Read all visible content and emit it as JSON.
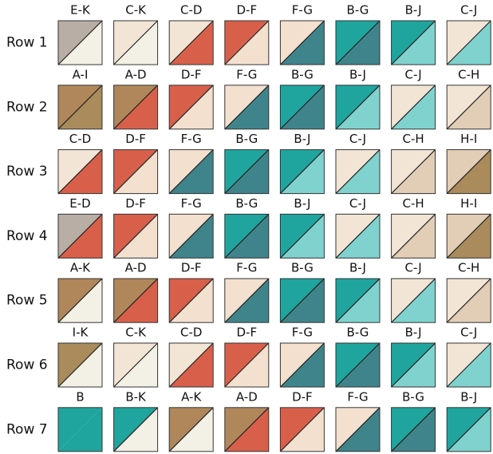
{
  "rows": [
    {
      "label": "Row 1",
      "cells": [
        "E-K",
        "C-K",
        "C-D",
        "D-F",
        "F-G",
        "B-G",
        "B-J",
        "C-J"
      ]
    },
    {
      "label": "Row 2",
      "cells": [
        "A-I",
        "A-D",
        "D-F",
        "F-G",
        "B-G",
        "B-J",
        "C-J",
        "C-H"
      ]
    },
    {
      "label": "Row 3",
      "cells": [
        "C-D",
        "D-F",
        "F-G",
        "B-G",
        "B-J",
        "C-J",
        "C-H",
        "H-I"
      ]
    },
    {
      "label": "Row 4",
      "cells": [
        "E-D",
        "D-F",
        "F-G",
        "B-G",
        "B-J",
        "C-J",
        "C-H",
        "H-I"
      ]
    },
    {
      "label": "Row 5",
      "cells": [
        "A-K",
        "A-D",
        "D-F",
        "F-G",
        "B-G",
        "B-J",
        "C-J",
        "C-H"
      ]
    },
    {
      "label": "Row 6",
      "cells": [
        "I-K",
        "C-K",
        "C-D",
        "D-F",
        "F-G",
        "B-G",
        "B-J",
        "C-J"
      ]
    },
    {
      "label": "Row 7",
      "cells": [
        "B",
        "B-K",
        "A-K",
        "A-D",
        "D-F",
        "F-G",
        "B-G",
        "B-J"
      ]
    }
  ],
  "fabric_colors": {
    "A": "#b0875a",
    "B": "#1fa59e",
    "C": "#f2e5d6",
    "D": "#d8604b",
    "E": "#b8aea6",
    "F": "#f3e0cf",
    "G": "#3f848b",
    "H": "#e2cdb6",
    "I": "#a98b5c",
    "J": "#80d2ce",
    "K": "#f3f1e6"
  }
}
